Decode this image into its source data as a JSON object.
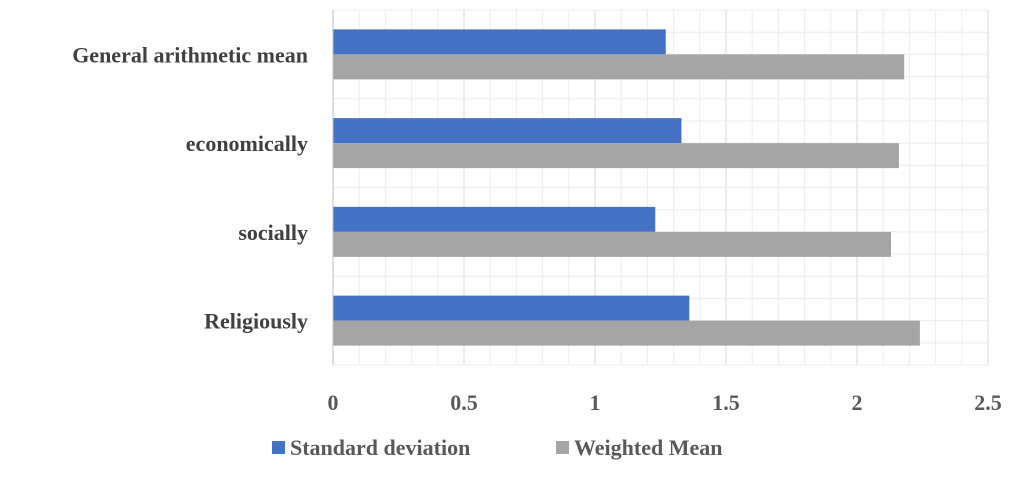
{
  "chart_data": {
    "type": "bar",
    "orientation": "horizontal",
    "categories": [
      "General arithmetic mean",
      "economically",
      "socially",
      "Religiously"
    ],
    "series": [
      {
        "name": "Standard deviation",
        "color": "#4472C4",
        "values": [
          1.27,
          1.33,
          1.23,
          1.36
        ]
      },
      {
        "name": "Weighted Mean",
        "color": "#A5A5A5",
        "values": [
          2.18,
          2.16,
          2.13,
          2.24
        ]
      }
    ],
    "xlim": [
      0,
      2.5
    ],
    "xticks": [
      "0",
      "0.5",
      "1",
      "1.5",
      "2",
      "2.5"
    ],
    "minor_gridlines": true,
    "legend_position": "bottom",
    "title": "",
    "xlabel": "",
    "ylabel": ""
  }
}
